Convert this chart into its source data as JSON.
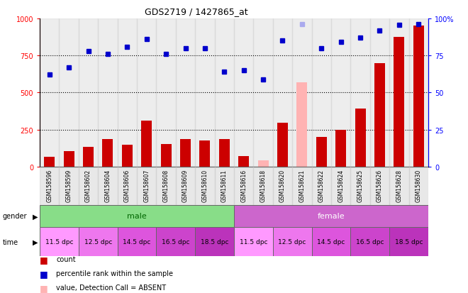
{
  "title": "GDS2719 / 1427865_at",
  "samples": [
    "GSM158596",
    "GSM158599",
    "GSM158602",
    "GSM158604",
    "GSM158606",
    "GSM158607",
    "GSM158608",
    "GSM158609",
    "GSM158610",
    "GSM158611",
    "GSM158616",
    "GSM158618",
    "GSM158620",
    "GSM158621",
    "GSM158622",
    "GSM158624",
    "GSM158625",
    "GSM158626",
    "GSM158628",
    "GSM158630"
  ],
  "bar_values": [
    65,
    105,
    135,
    185,
    150,
    310,
    155,
    185,
    175,
    185,
    70,
    45,
    295,
    570,
    200,
    250,
    390,
    700,
    875,
    950
  ],
  "bar_absent": [
    false,
    false,
    false,
    false,
    false,
    false,
    false,
    false,
    false,
    false,
    false,
    true,
    false,
    true,
    false,
    false,
    false,
    false,
    false,
    false
  ],
  "rank_values": [
    62,
    67,
    78,
    76,
    81,
    86,
    76,
    80,
    80,
    64,
    65,
    59,
    85,
    96,
    80,
    84,
    87,
    92,
    95.5,
    96
  ],
  "rank_absent": [
    false,
    false,
    false,
    false,
    false,
    false,
    false,
    false,
    false,
    false,
    false,
    false,
    false,
    true,
    false,
    false,
    false,
    false,
    false,
    false
  ],
  "ylim_left": [
    0,
    1000
  ],
  "ylim_right": [
    0,
    100
  ],
  "bar_color": "#cc0000",
  "bar_absent_color": "#ffb3b3",
  "rank_color": "#0000cc",
  "rank_absent_color": "#aaaaee",
  "male_color": "#88dd88",
  "female_color": "#cc66cc",
  "time_blocks": [
    [
      0,
      2,
      "11.5 dpc",
      "#ff99ff"
    ],
    [
      2,
      4,
      "12.5 dpc",
      "#ee77ee"
    ],
    [
      4,
      6,
      "14.5 dpc",
      "#dd55dd"
    ],
    [
      6,
      8,
      "16.5 dpc",
      "#cc44cc"
    ],
    [
      8,
      10,
      "18.5 dpc",
      "#bb33bb"
    ],
    [
      10,
      12,
      "11.5 dpc",
      "#ff99ff"
    ],
    [
      12,
      14,
      "12.5 dpc",
      "#ee77ee"
    ],
    [
      14,
      16,
      "14.5 dpc",
      "#dd55dd"
    ],
    [
      16,
      18,
      "16.5 dpc",
      "#cc44cc"
    ],
    [
      18,
      20,
      "18.5 dpc",
      "#bb33bb"
    ]
  ]
}
